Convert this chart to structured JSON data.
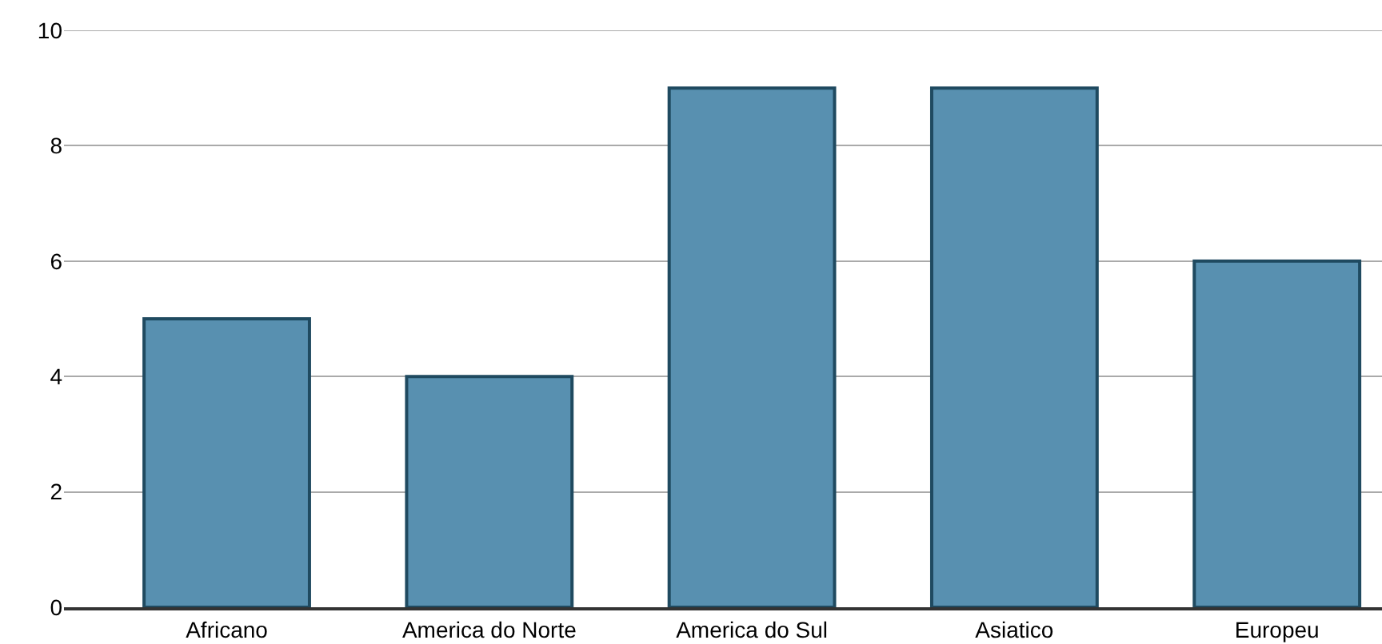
{
  "chart_data": {
    "type": "bar",
    "categories": [
      "Africano",
      "America do Norte",
      "America do Sul",
      "Asiatico",
      "Europeu"
    ],
    "values": [
      5,
      4,
      9,
      9,
      6
    ],
    "color": "#5890b0",
    "ylim": [
      0,
      10
    ],
    "yticks": [
      0,
      2,
      4,
      6,
      8,
      10
    ],
    "grid": "y"
  }
}
